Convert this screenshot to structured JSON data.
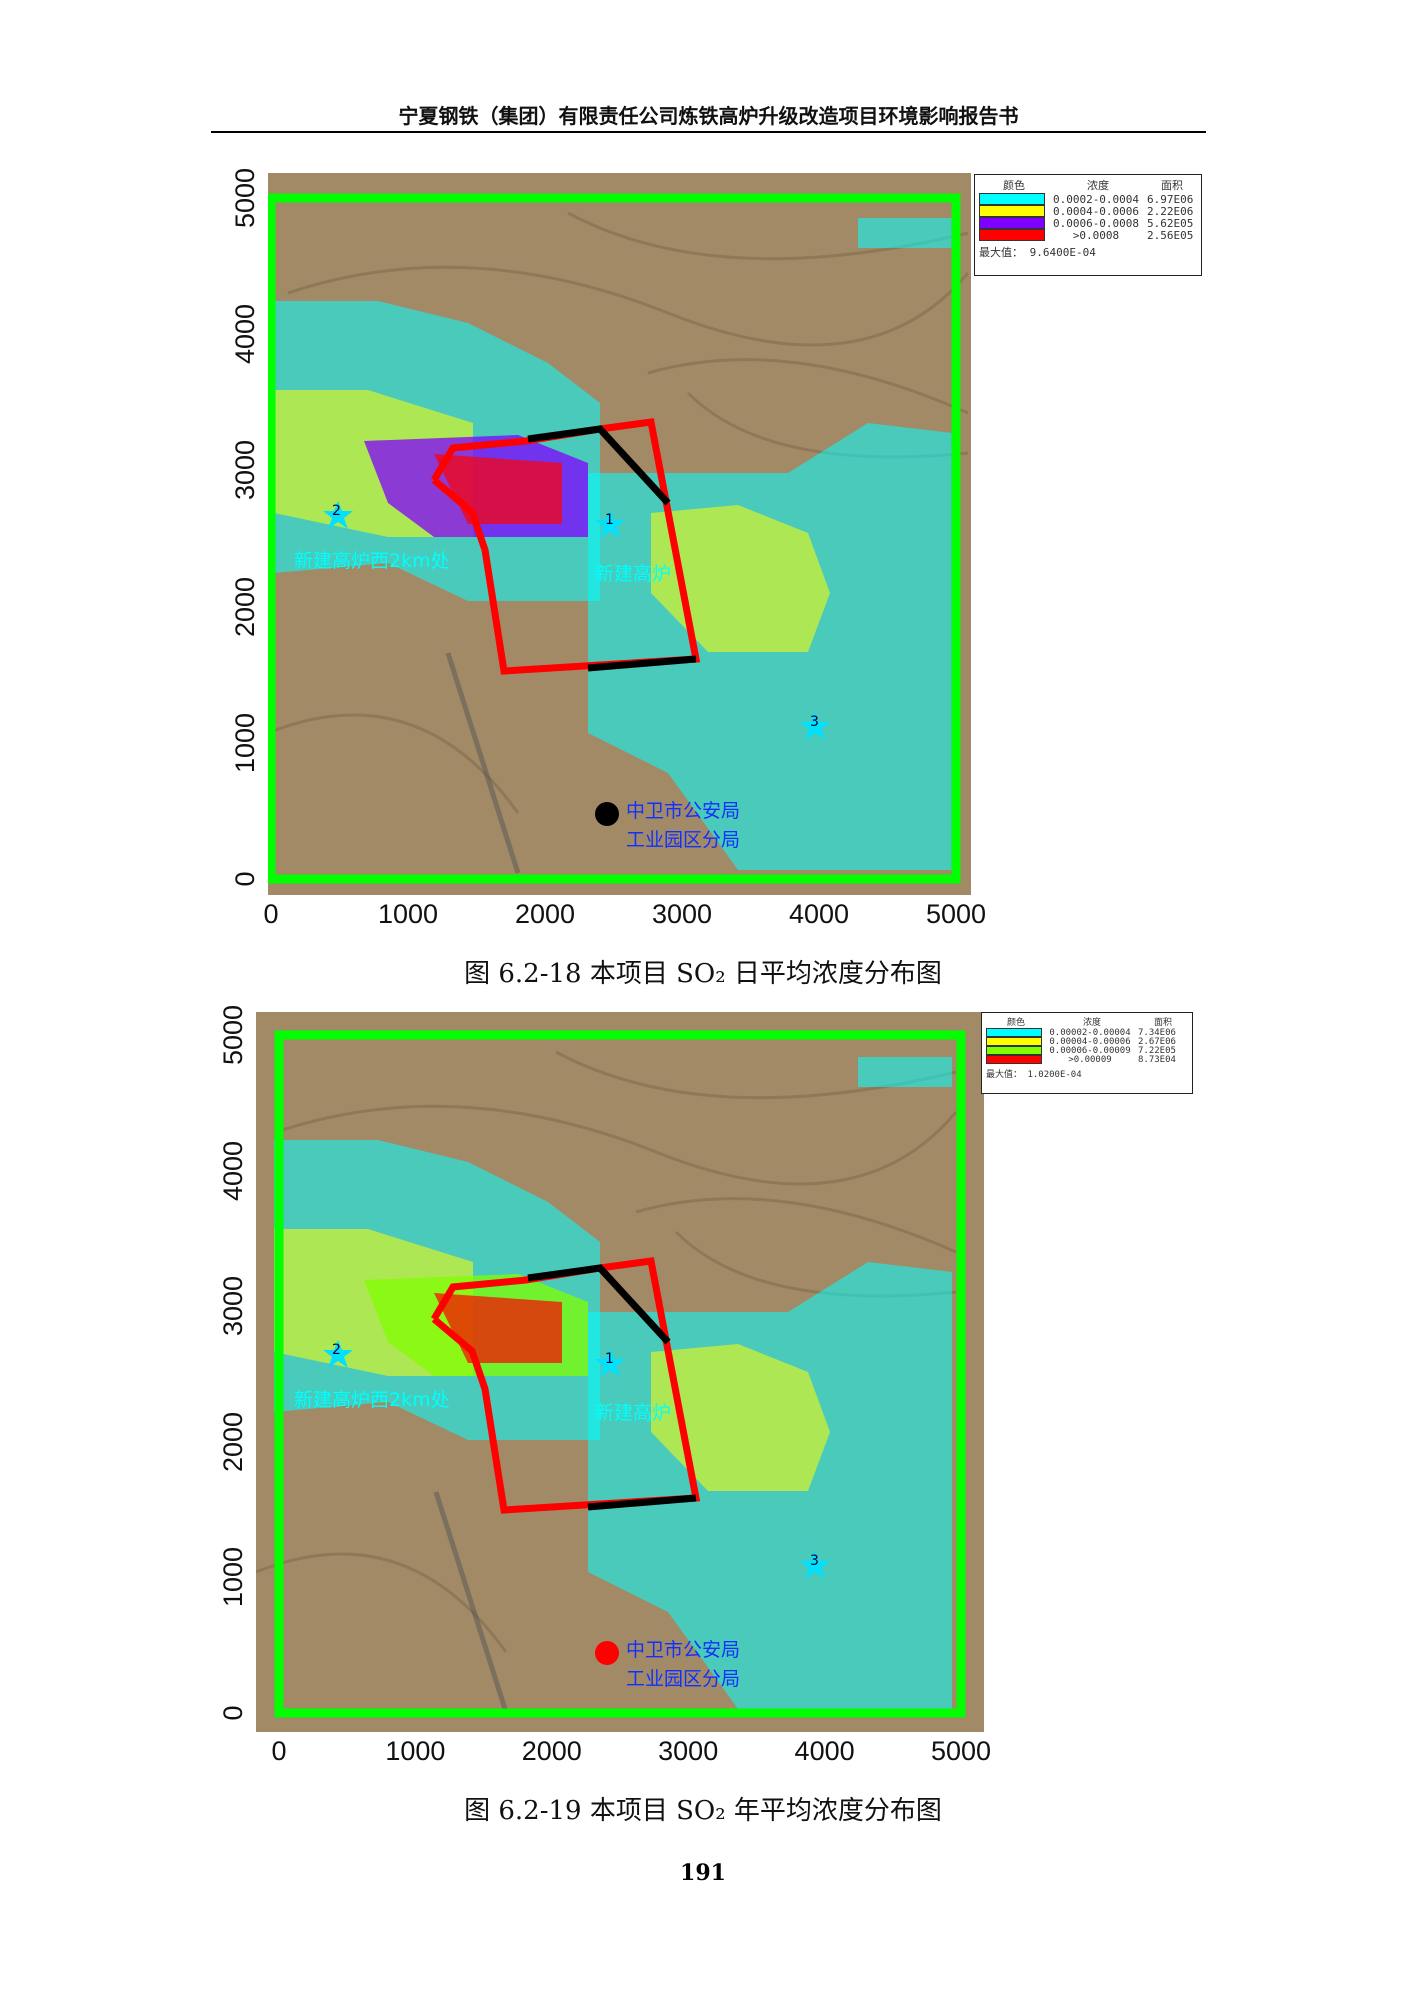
{
  "header": {
    "title": "宁夏钢铁（集团）有限责任公司炼铁高炉升级改造项目环境影响报告书"
  },
  "figures": [
    {
      "caption": "图 6.2-18  本项目 SO₂ 日平均浓度分布图",
      "x_ticks": [
        "0",
        "1000",
        "2000",
        "3000",
        "4000",
        "5000"
      ],
      "y_ticks": [
        "0",
        "1000",
        "2000",
        "3000",
        "4000",
        "5000"
      ],
      "legend": {
        "headers": [
          "颜色",
          "浓度",
          "面积"
        ],
        "rows": [
          {
            "color": "#00ffff",
            "range": "0.0002-0.0004",
            "area": "6.97E06"
          },
          {
            "color": "#ffff00",
            "range": "0.0004-0.0006",
            "area": "2.22E06"
          },
          {
            "color": "#8000ff",
            "range": "0.0006-0.0008",
            "area": "5.62E05"
          },
          {
            "color": "#ff0000",
            "range": ">0.0008",
            "area": "2.56E05"
          }
        ],
        "max_label": "最大值：",
        "max_value": "9.6400E-04"
      },
      "labels": {
        "site2_num": "2",
        "site2": "新建高炉西2km处",
        "site1_num": "1",
        "site1": "新建高炉",
        "site3_num": "3",
        "police1": "中卫市公安局",
        "police2": "工业园区分局"
      }
    },
    {
      "caption": "图 6.2-19  本项目 SO₂ 年平均浓度分布图",
      "x_ticks": [
        "0",
        "1000",
        "2000",
        "3000",
        "4000",
        "5000"
      ],
      "y_ticks": [
        "0",
        "1000",
        "2000",
        "3000",
        "4000",
        "5000"
      ],
      "legend": {
        "headers": [
          "颜色",
          "浓度",
          "面积"
        ],
        "rows": [
          {
            "color": "#00ffff",
            "range": "0.00002-0.00004",
            "area": "7.34E06"
          },
          {
            "color": "#ffff00",
            "range": "0.00004-0.00006",
            "area": "2.67E06"
          },
          {
            "color": "#80ff00",
            "range": "0.00006-0.00009",
            "area": "7.22E05"
          },
          {
            "color": "#ff0000",
            "range": ">0.00009",
            "area": "8.73E04"
          }
        ],
        "max_label": "最大值：",
        "max_value": "1.0200E-04"
      },
      "labels": {
        "site2_num": "2",
        "site2": "新建高炉西2km处",
        "site1_num": "1",
        "site1": "新建高炉",
        "site3_num": "3",
        "police1": "中卫市公安局",
        "police2": "工业园区分局"
      }
    }
  ],
  "page_number": "191"
}
